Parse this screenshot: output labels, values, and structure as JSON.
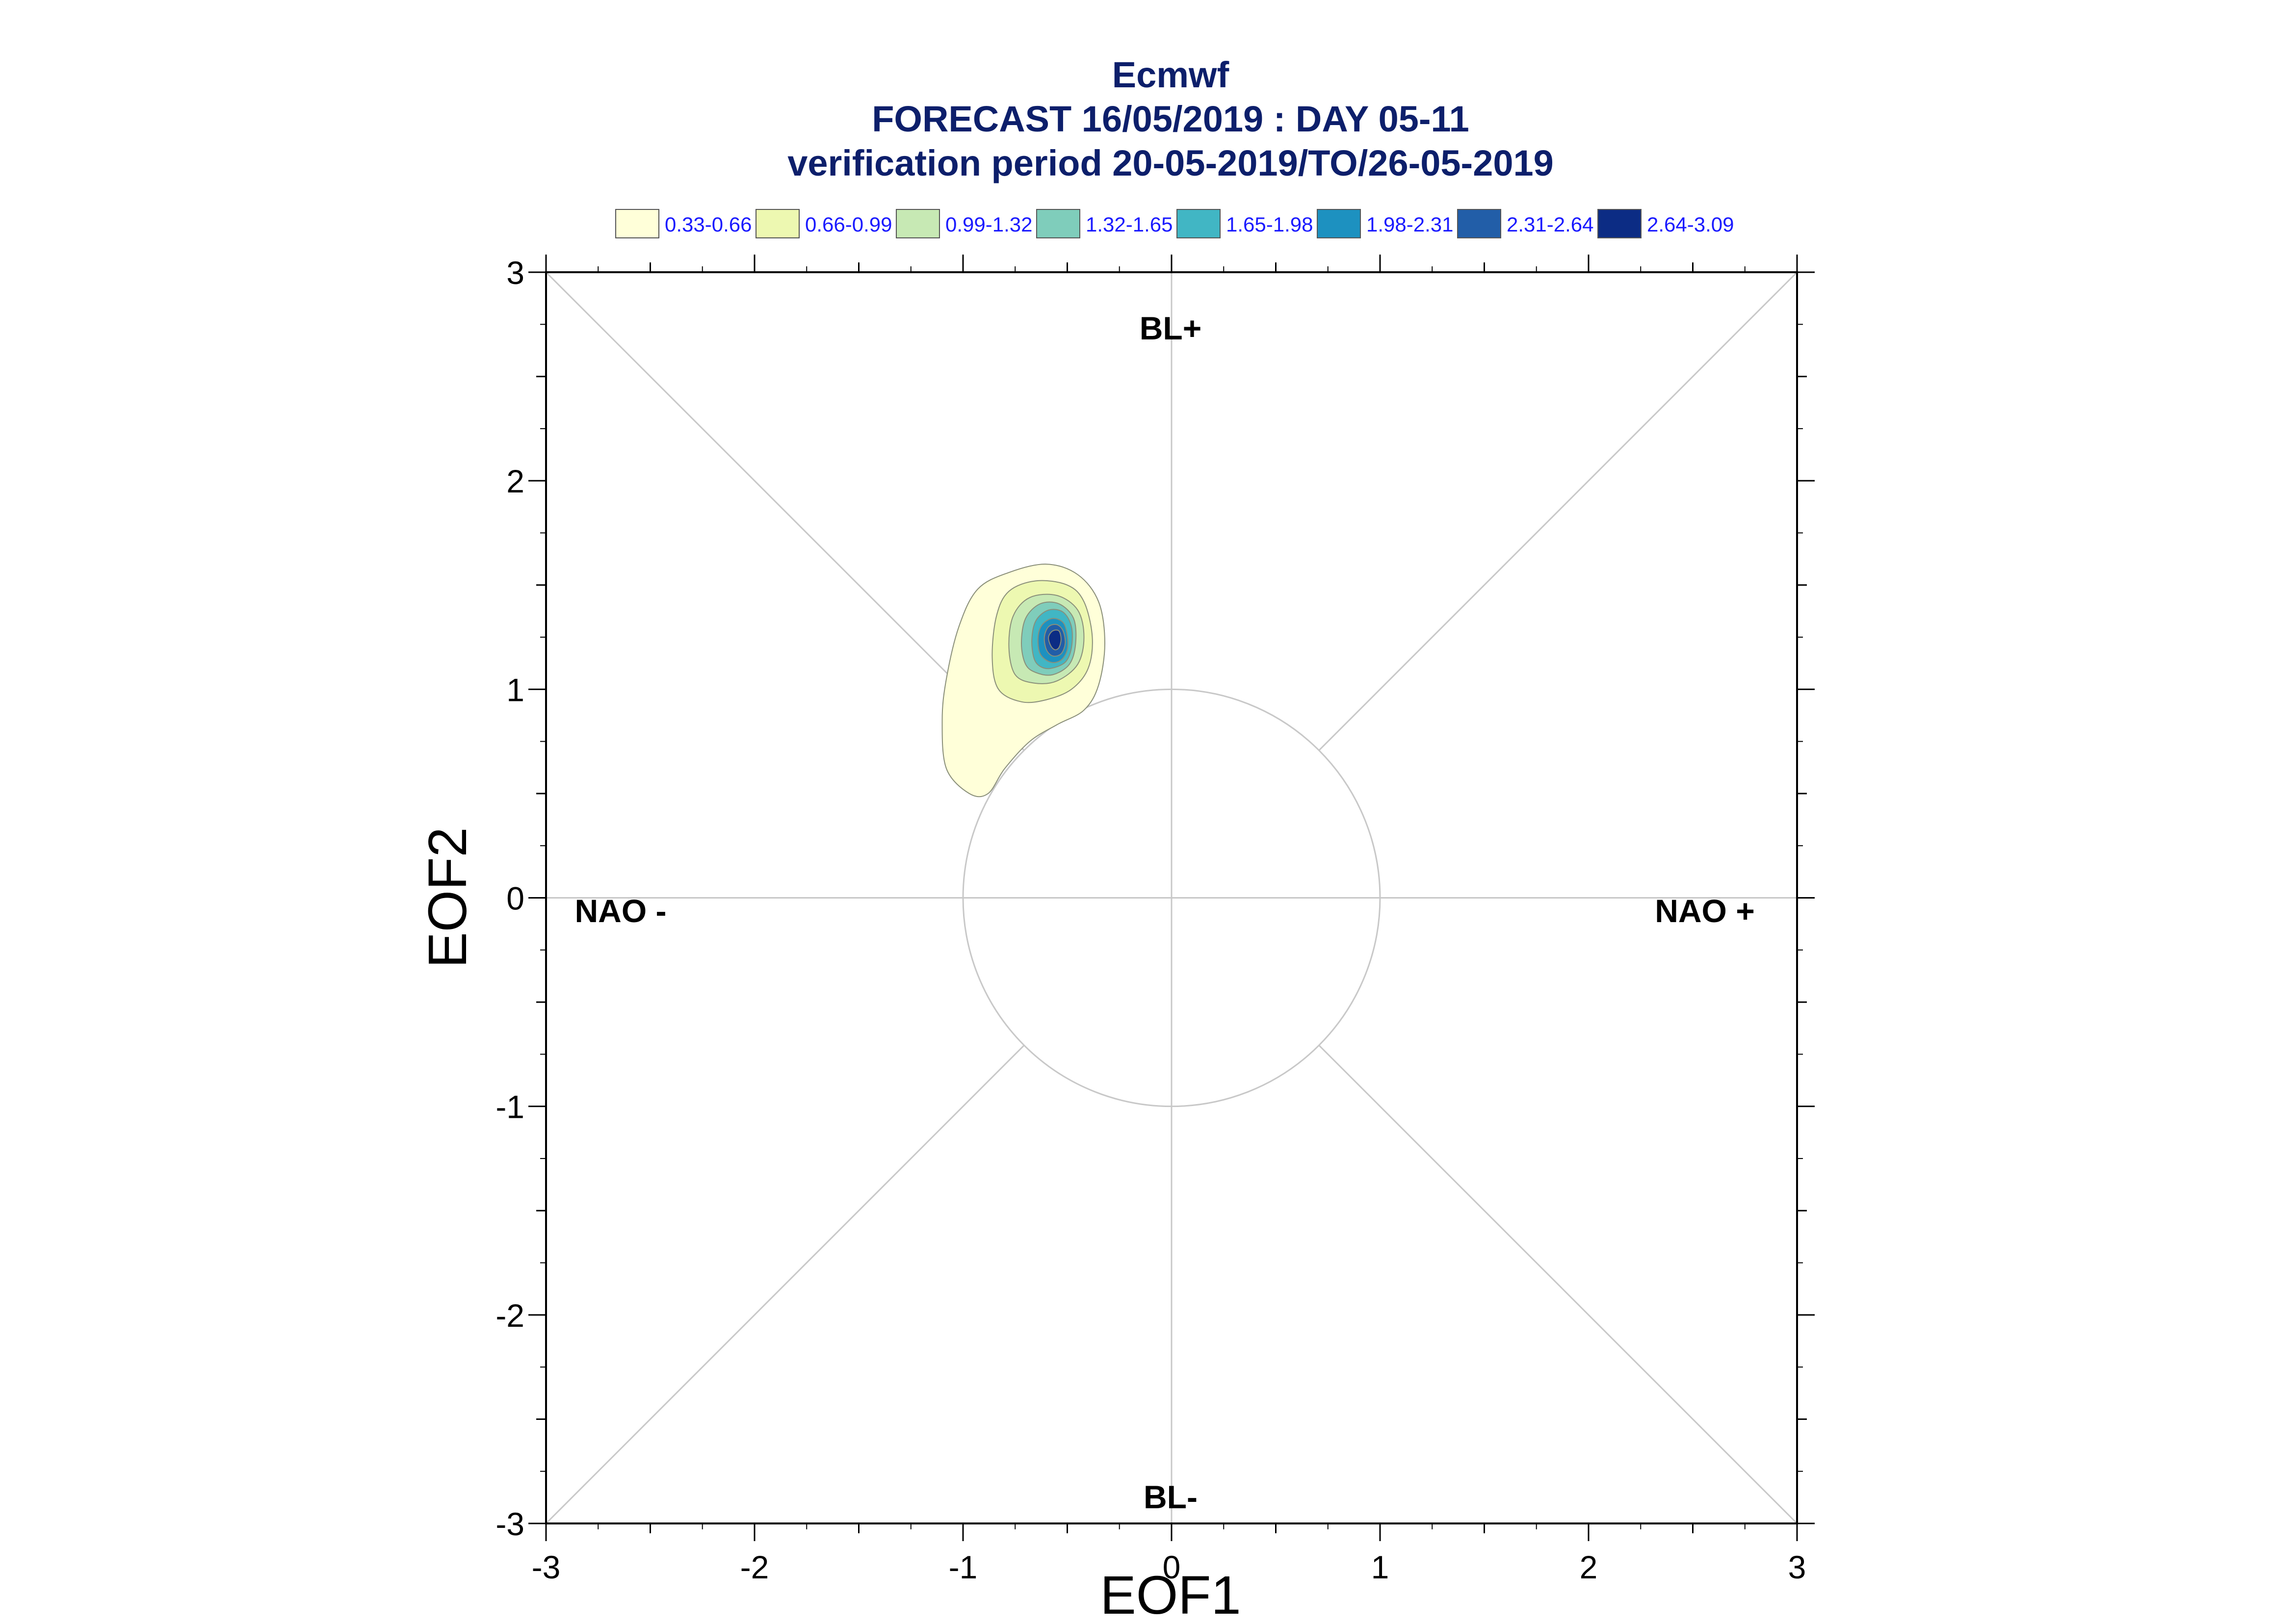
{
  "chart_data": {
    "type": "contour",
    "title": "Ecmwf",
    "subtitle_1": "FORECAST 16/05/2019 : DAY 05-11",
    "subtitle_2": "verification period 20-05-2019/TO/26-05-2019",
    "xlabel": "EOF1",
    "ylabel": "EOF2",
    "xlim": [
      -3,
      3
    ],
    "ylim": [
      -3,
      3
    ],
    "x_ticks": [
      "-3",
      "-2",
      "-1",
      "0",
      "1",
      "2",
      "3"
    ],
    "y_ticks": [
      "3",
      "2",
      "1",
      "0",
      "-1",
      "-2",
      "-3"
    ],
    "legend_position": "top",
    "legend": [
      {
        "label": "0.33-0.66",
        "color": "#ffffd9"
      },
      {
        "label": "0.66-0.99",
        "color": "#edf8b1"
      },
      {
        "label": "0.99-1.32",
        "color": "#c7e9b4"
      },
      {
        "label": "1.32-1.65",
        "color": "#7fcdbb"
      },
      {
        "label": "1.65-1.98",
        "color": "#41b6c4"
      },
      {
        "label": "1.98-2.31",
        "color": "#1d91c0"
      },
      {
        "label": "2.31-2.64",
        "color": "#225ea8"
      },
      {
        "label": "2.64-3.09",
        "color": "#0c2c84"
      }
    ],
    "regime_labels": {
      "top": "BL+",
      "bottom": "BL-",
      "left": "NAO -",
      "right": "NAO +"
    },
    "reference_circle_radius": 1,
    "density_peak": {
      "x": -0.55,
      "y": 1.24
    },
    "contours": [
      {
        "level": "0.33-0.66",
        "points": [
          [
            -0.97,
            0.5
          ],
          [
            -1.08,
            0.62
          ],
          [
            -1.1,
            0.85
          ],
          [
            -1.08,
            1.05
          ],
          [
            -1.02,
            1.3
          ],
          [
            -0.93,
            1.48
          ],
          [
            -0.78,
            1.56
          ],
          [
            -0.6,
            1.6
          ],
          [
            -0.45,
            1.55
          ],
          [
            -0.35,
            1.42
          ],
          [
            -0.32,
            1.22
          ],
          [
            -0.35,
            1.02
          ],
          [
            -0.42,
            0.9
          ],
          [
            -0.55,
            0.83
          ],
          [
            -0.68,
            0.75
          ],
          [
            -0.8,
            0.62
          ],
          [
            -0.88,
            0.5
          ]
        ]
      },
      {
        "level": "0.66-0.99",
        "points": [
          [
            -0.83,
            1.0
          ],
          [
            -0.86,
            1.15
          ],
          [
            -0.84,
            1.35
          ],
          [
            -0.78,
            1.47
          ],
          [
            -0.65,
            1.52
          ],
          [
            -0.5,
            1.5
          ],
          [
            -0.42,
            1.42
          ],
          [
            -0.38,
            1.25
          ],
          [
            -0.4,
            1.1
          ],
          [
            -0.48,
            1.0
          ],
          [
            -0.6,
            0.95
          ],
          [
            -0.72,
            0.94
          ]
        ]
      },
      {
        "level": "0.99-1.32",
        "points": [
          [
            -0.75,
            1.07
          ],
          [
            -0.78,
            1.2
          ],
          [
            -0.76,
            1.35
          ],
          [
            -0.68,
            1.44
          ],
          [
            -0.55,
            1.45
          ],
          [
            -0.45,
            1.38
          ],
          [
            -0.42,
            1.25
          ],
          [
            -0.45,
            1.12
          ],
          [
            -0.55,
            1.04
          ],
          [
            -0.66,
            1.03
          ]
        ]
      },
      {
        "level": "1.32-1.65",
        "points": [
          [
            -0.7,
            1.12
          ],
          [
            -0.72,
            1.22
          ],
          [
            -0.7,
            1.34
          ],
          [
            -0.63,
            1.41
          ],
          [
            -0.54,
            1.41
          ],
          [
            -0.47,
            1.34
          ],
          [
            -0.46,
            1.22
          ],
          [
            -0.49,
            1.12
          ],
          [
            -0.57,
            1.07
          ],
          [
            -0.65,
            1.08
          ]
        ]
      },
      {
        "level": "1.65-1.98",
        "points": [
          [
            -0.66,
            1.15
          ],
          [
            -0.67,
            1.24
          ],
          [
            -0.65,
            1.33
          ],
          [
            -0.59,
            1.38
          ],
          [
            -0.52,
            1.37
          ],
          [
            -0.48,
            1.3
          ],
          [
            -0.48,
            1.2
          ],
          [
            -0.51,
            1.13
          ],
          [
            -0.58,
            1.1
          ],
          [
            -0.63,
            1.11
          ]
        ]
      },
      {
        "level": "1.98-2.31",
        "points": [
          [
            -0.63,
            1.17
          ],
          [
            -0.64,
            1.25
          ],
          [
            -0.62,
            1.31
          ],
          [
            -0.57,
            1.34
          ],
          [
            -0.52,
            1.32
          ],
          [
            -0.5,
            1.26
          ],
          [
            -0.5,
            1.19
          ],
          [
            -0.53,
            1.14
          ],
          [
            -0.58,
            1.13
          ]
        ]
      },
      {
        "level": "2.31-2.64",
        "points": [
          [
            -0.6,
            1.19
          ],
          [
            -0.61,
            1.25
          ],
          [
            -0.59,
            1.3
          ],
          [
            -0.55,
            1.31
          ],
          [
            -0.52,
            1.28
          ],
          [
            -0.51,
            1.22
          ],
          [
            -0.53,
            1.17
          ],
          [
            -0.57,
            1.16
          ]
        ]
      },
      {
        "level": "2.64-3.09",
        "points": [
          [
            -0.58,
            1.21
          ],
          [
            -0.59,
            1.25
          ],
          [
            -0.57,
            1.28
          ],
          [
            -0.54,
            1.28
          ],
          [
            -0.53,
            1.24
          ],
          [
            -0.54,
            1.2
          ],
          [
            -0.56,
            1.19
          ]
        ]
      }
    ]
  }
}
